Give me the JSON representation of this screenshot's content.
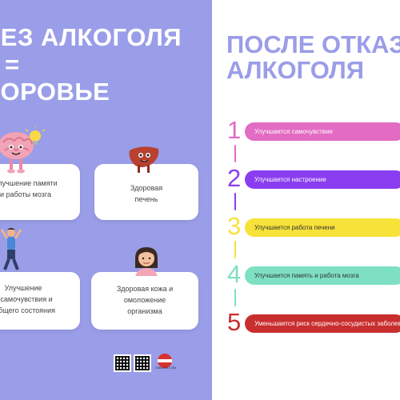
{
  "left": {
    "title_lines": [
      "БЕЗ АЛКОГОЛЯ",
      "=",
      "ЗДОРОВЬЕ"
    ],
    "cards": [
      {
        "lines": [
          "Улучшение памяти",
          "и работы мозга"
        ]
      },
      {
        "lines": [
          "Здоровая",
          "печень"
        ]
      },
      {
        "lines": [
          "Улучшение",
          "самочувствия и",
          "общего состояния"
        ]
      },
      {
        "lines": [
          "Здоровая кожа и",
          "омоложение",
          "организма"
        ]
      }
    ],
    "footer": {
      "badge_text": "8 800 200 0 200"
    }
  },
  "right": {
    "title_lines": [
      "ПОСЛЕ ОТКАЗА ОТ",
      "АЛКОГОЛЯ"
    ],
    "items": [
      {
        "number": "1",
        "text": "Улучшается самочувствие",
        "color": "#e26bc3"
      },
      {
        "number": "2",
        "text": "Улучшается настроение",
        "color": "#8a3df0"
      },
      {
        "number": "3",
        "text": "Улучшается работа печени",
        "color": "#f7e23a"
      },
      {
        "number": "4",
        "text": "Улучшается память и работа мозга",
        "color": "#7ee0c2"
      },
      {
        "number": "5",
        "text": "Уменьшается риск сердечно-сосудистых заболеваний",
        "color": "#c92e2e"
      }
    ]
  },
  "colors": {
    "left_bg": "#9a9de8",
    "title_right": "#9a9de8"
  }
}
